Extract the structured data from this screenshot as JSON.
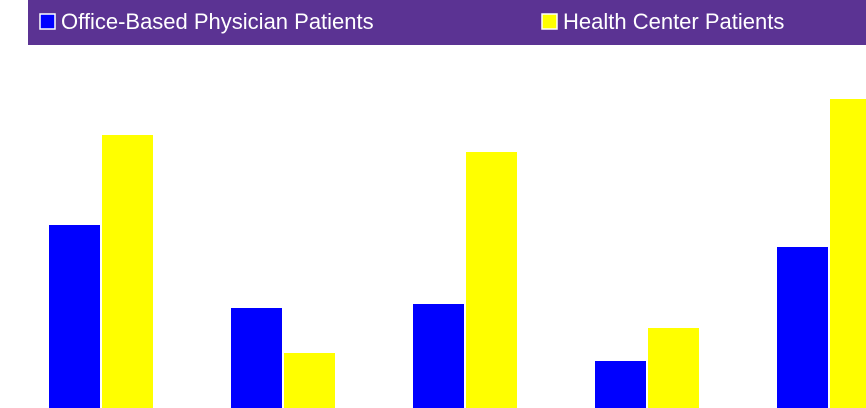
{
  "chart_data": {
    "type": "bar",
    "categories": [
      null,
      null,
      null,
      null,
      null
    ],
    "series": [
      {
        "name": "Office-Based Physician Patients",
        "color": "#0000ff",
        "values": [
          183,
          100,
          104,
          47,
          161
        ]
      },
      {
        "name": "Health Center Patients",
        "color": "#ffff00",
        "values": [
          273,
          55,
          256,
          80,
          309
        ]
      }
    ],
    "ylim": [
      0,
      358
    ],
    "legend_background": "#5b3393",
    "grid": false
  }
}
